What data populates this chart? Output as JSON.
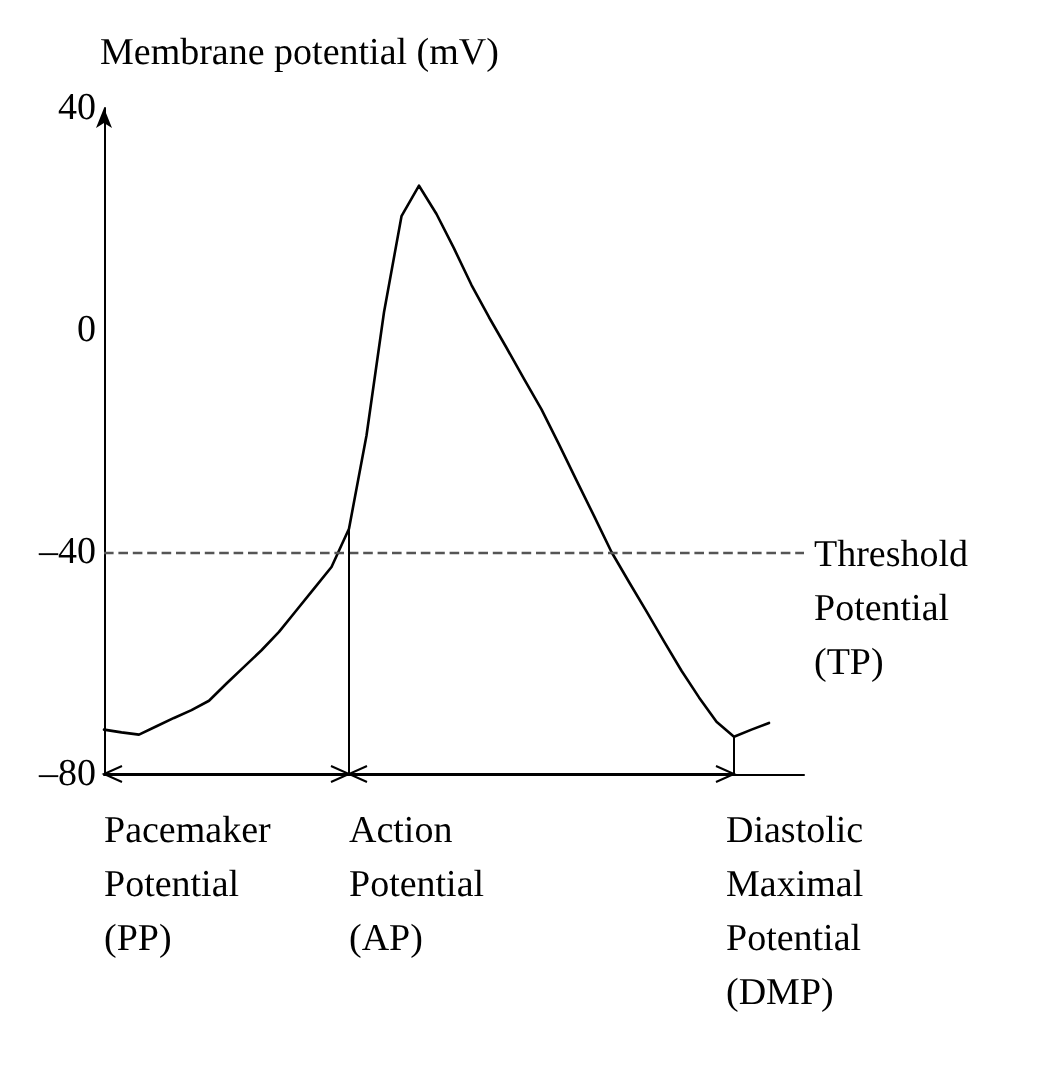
{
  "chart_data": {
    "type": "line",
    "ylabel": "Membrane potential (mV)",
    "categories": [
      null,
      null,
      null,
      null,
      null,
      null,
      null,
      null,
      null,
      null,
      null,
      null,
      null,
      null,
      null,
      null,
      null,
      null,
      null,
      null,
      null,
      null,
      null,
      null,
      null,
      null,
      null,
      null,
      null,
      null,
      null,
      null,
      null,
      null,
      null,
      null,
      null,
      null,
      null,
      null,
      null
    ],
    "series": [
      {
        "color": "#000000",
        "values": [
          -72,
          -72.5,
          -72.9,
          -71.4,
          -69.9,
          -68.5,
          -66.8,
          -63.7,
          -60.7,
          -57.7,
          -54.4,
          -50.5,
          -46.6,
          -42.7,
          -35.8,
          -19,
          3.2,
          20.5,
          26,
          20.9,
          14.7,
          8.1,
          2.3,
          -3.2,
          -8.8,
          -14.3,
          -20.6,
          -27.1,
          -33.5,
          -40,
          -45.4,
          -50.7,
          -56.1,
          -61.4,
          -66.2,
          -70.6,
          -73.3,
          -72,
          -70.8,
          null,
          null
        ]
      }
    ],
    "ylim": [
      -80,
      40
    ],
    "yticks": [
      {
        "value": -80,
        "label": "–80"
      },
      {
        "value": -40,
        "label": "–40"
      },
      0,
      40
    ],
    "tick_labels": "y",
    "line_style": "solid",
    "ref_lines": [
      {
        "axis": "y",
        "value": -40,
        "label": "Threshold Potential (TP)",
        "color": "#555555",
        "line_style": "dashed"
      }
    ],
    "annotations": [
      "Pacemaker Potential (PP)",
      "Action Potential (AP)",
      "Diastolic Maximal Potential (DMP)"
    ]
  }
}
